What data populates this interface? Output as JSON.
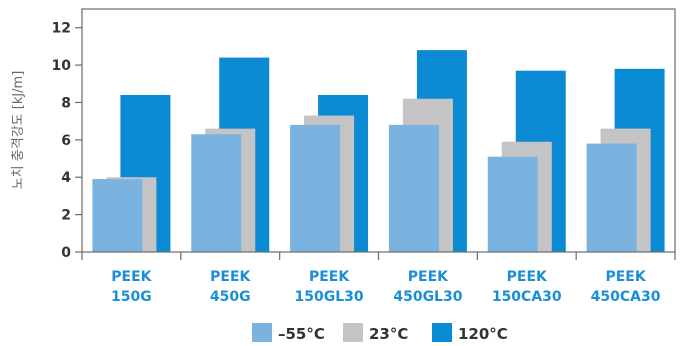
{
  "chart_data": {
    "type": "bar",
    "ylabel": "노치 충격강도 [kJ/m]",
    "ylim": [
      0,
      13
    ],
    "yticks": [
      0,
      2,
      4,
      6,
      8,
      10,
      12
    ],
    "grid": false,
    "legend_position": "bottom",
    "categories": [
      [
        "PEEK",
        "150G"
      ],
      [
        "PEEK",
        "450G"
      ],
      [
        "PEEK",
        "150GL30"
      ],
      [
        "PEEK",
        "450GL30"
      ],
      [
        "PEEK",
        "150CA30"
      ],
      [
        "PEEK",
        "450CA30"
      ]
    ],
    "series": [
      {
        "name": "–55°C",
        "color": "#7ab3e0",
        "values": [
          3.9,
          6.3,
          6.8,
          6.8,
          5.1,
          5.8
        ]
      },
      {
        "name": "23°C",
        "color": "#c4c4c4",
        "values": [
          4.0,
          6.6,
          7.3,
          8.2,
          5.9,
          6.6
        ]
      },
      {
        "name": "120°C",
        "color": "#0a8bd3",
        "values": [
          8.4,
          10.4,
          8.4,
          10.8,
          9.7,
          9.8
        ]
      }
    ]
  }
}
